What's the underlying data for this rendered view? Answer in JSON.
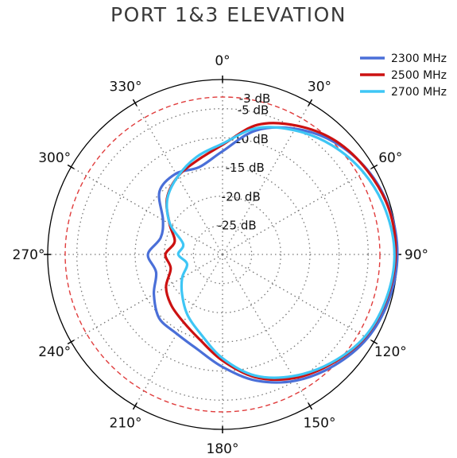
{
  "title": "PORT 1&3 ELEVATION",
  "chart_data": {
    "type": "polar-line",
    "title": "PORT 1&3 ELEVATION",
    "angle_unit": "degrees",
    "angle_zero": "top",
    "angle_direction": "clockwise",
    "radial_unit": "dB",
    "radial_range": [
      -30,
      0
    ],
    "angle_ticks": [
      "0°",
      "30°",
      "60°",
      "90°",
      "120°",
      "150°",
      "180°",
      "210°",
      "240°",
      "270°",
      "300°",
      "330°"
    ],
    "radial_ticks": [
      "-3 dB",
      "-5 dB",
      "-10 dB",
      "-15 dB",
      "-20 dB",
      "-25 dB"
    ],
    "reference_circle": {
      "value": -3,
      "label": "-3 dB",
      "color": "#e03c3c",
      "style": "dashed"
    },
    "grid": true,
    "legend_position": "top-right",
    "series": [
      {
        "name": "2300 MHz",
        "color": "#4a6fd8",
        "angles": [
          0,
          15,
          30,
          45,
          60,
          75,
          90,
          105,
          120,
          135,
          150,
          165,
          180,
          195,
          210,
          225,
          240,
          255,
          270,
          285,
          300,
          315,
          330,
          345
        ],
        "values": [
          -12.3,
          -8.0,
          -5.1,
          -2.8,
          -1.2,
          -0.3,
          0.0,
          -0.4,
          -1.3,
          -3.0,
          -5.0,
          -7.6,
          -10.7,
          -13.2,
          -14.3,
          -14.6,
          -16.4,
          -18.2,
          -17.2,
          -19.0,
          -18.2,
          -14.7,
          -14.0,
          -14.5
        ]
      },
      {
        "name": "2500 MHz",
        "color": "#cc1111",
        "angles": [
          0,
          15,
          30,
          45,
          60,
          75,
          90,
          105,
          120,
          135,
          150,
          165,
          180,
          195,
          210,
          225,
          240,
          255,
          270,
          285,
          300,
          315,
          330,
          345
        ],
        "values": [
          -11.2,
          -7.0,
          -4.5,
          -2.5,
          -1.3,
          -0.4,
          -0.3,
          -0.8,
          -1.7,
          -3.5,
          -5.5,
          -8.2,
          -11.8,
          -14.9,
          -16.6,
          -17.6,
          -18.8,
          -20.8,
          -20.2,
          -21.5,
          -19.5,
          -16.5,
          -14.6,
          -13.3
        ]
      },
      {
        "name": "2700 MHz",
        "color": "#3ec6f5",
        "angles": [
          0,
          15,
          30,
          45,
          60,
          75,
          90,
          105,
          120,
          135,
          150,
          165,
          180,
          195,
          210,
          225,
          240,
          255,
          270,
          285,
          300,
          315,
          330,
          345
        ],
        "values": [
          -11.0,
          -7.6,
          -5.4,
          -3.5,
          -2.0,
          -1.0,
          -0.5,
          -0.9,
          -1.8,
          -3.7,
          -5.9,
          -8.5,
          -12.2,
          -15.8,
          -18.0,
          -20.2,
          -22.0,
          -23.7,
          -22.4,
          -23.0,
          -19.6,
          -16.6,
          -14.6,
          -12.7
        ]
      }
    ]
  }
}
